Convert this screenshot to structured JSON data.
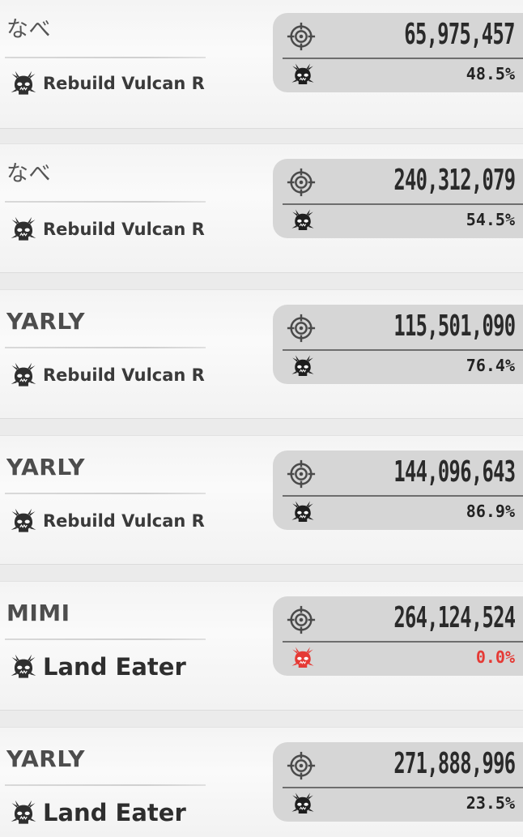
{
  "colors": {
    "accent_red": "#e53a35",
    "panel_bg": "#d6d6d6",
    "text_dark": "#2a2a2a"
  },
  "icons": {
    "target": "crosshair-target-icon",
    "boss": "demon-skull-icon"
  },
  "entries": [
    {
      "player": "なべ",
      "boss": "Rebuild Vulcan R",
      "score": "65,975,457",
      "percent": "48.5%",
      "percent_value": 48.5
    },
    {
      "player": "なべ",
      "boss": "Rebuild Vulcan R",
      "score": "240,312,079",
      "percent": "54.5%",
      "percent_value": 54.5
    },
    {
      "player": "YARLY",
      "boss": "Rebuild Vulcan R",
      "score": "115,501,090",
      "percent": "76.4%",
      "percent_value": 76.4
    },
    {
      "player": "YARLY",
      "boss": "Rebuild Vulcan R",
      "score": "144,096,643",
      "percent": "86.9%",
      "percent_value": 86.9
    },
    {
      "player": "MIMI",
      "boss": "Land Eater",
      "score": "264,124,524",
      "percent": "0.0%",
      "percent_value": 0.0
    },
    {
      "player": "YARLY",
      "boss": "Land Eater",
      "score": "271,888,996",
      "percent": "23.5%",
      "percent_value": 23.5
    }
  ]
}
